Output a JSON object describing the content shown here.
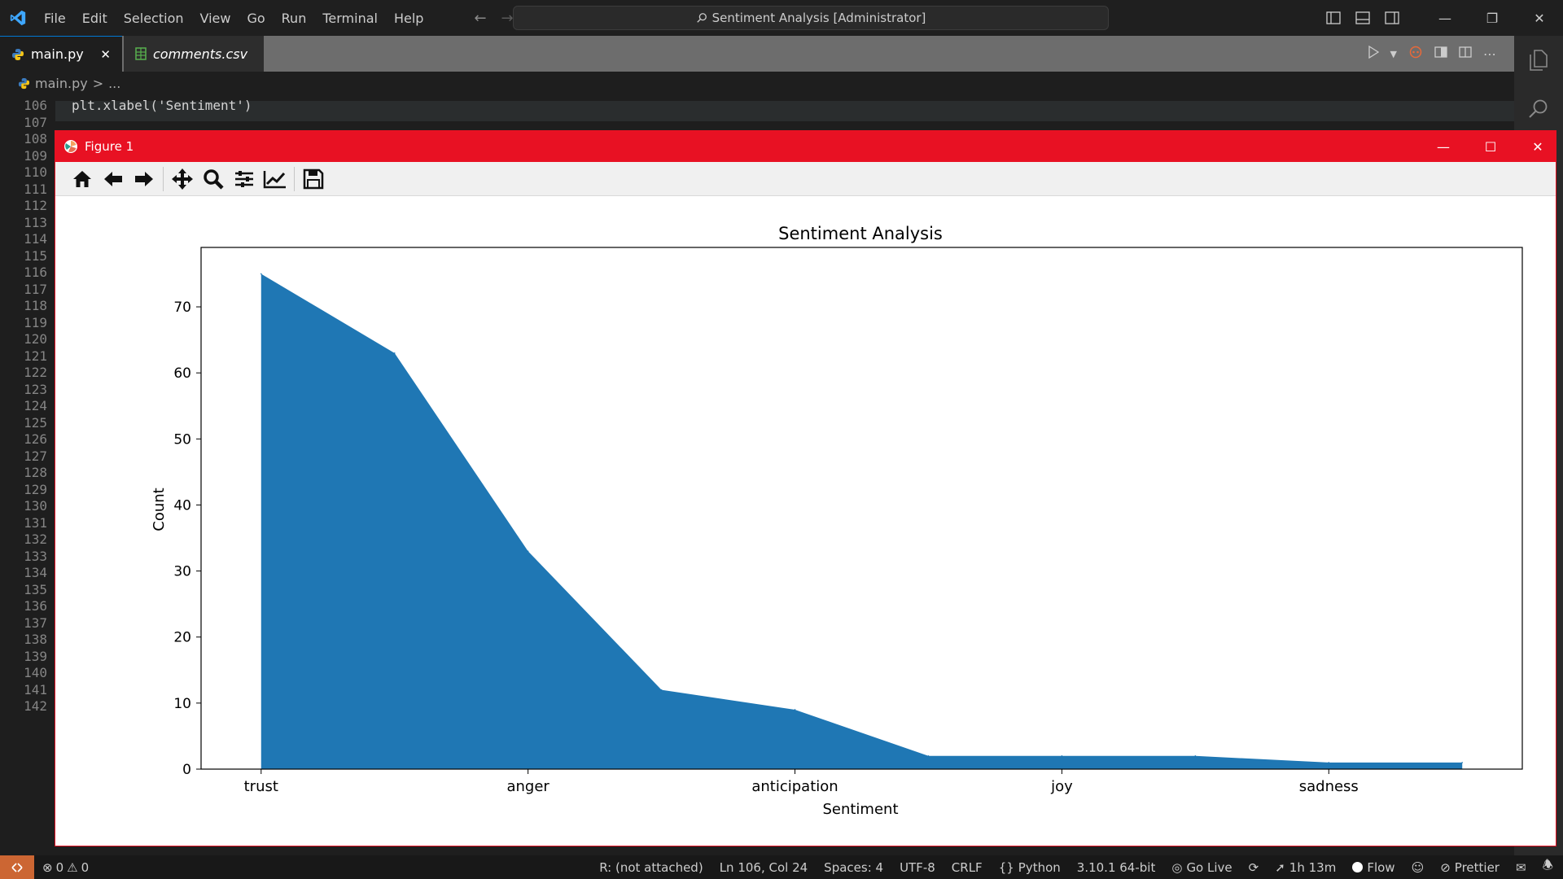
{
  "window": {
    "command_center": "Sentiment Analysis [Administrator]"
  },
  "menu": [
    "File",
    "Edit",
    "Selection",
    "View",
    "Go",
    "Run",
    "Terminal",
    "Help"
  ],
  "tabs": [
    {
      "label": "main.py",
      "icon": "python-icon",
      "active": true
    },
    {
      "label": "comments.csv",
      "icon": "csv-icon",
      "active": false
    }
  ],
  "breadcrumb": {
    "file": "main.py",
    "separator": ">",
    "rest": "..."
  },
  "editor": {
    "lines": [
      {
        "no": "106",
        "code": "plt.xlabel('Sentiment')"
      },
      {
        "no": "107",
        "code": ""
      },
      {
        "no": "108",
        "code": ""
      },
      {
        "no": "109",
        "code": ""
      },
      {
        "no": "110",
        "code": ""
      },
      {
        "no": "111",
        "code": ""
      },
      {
        "no": "112",
        "code": ""
      },
      {
        "no": "113",
        "code": ""
      },
      {
        "no": "114",
        "code": ""
      },
      {
        "no": "115",
        "code": ""
      },
      {
        "no": "116",
        "code": ""
      },
      {
        "no": "117",
        "code": ""
      },
      {
        "no": "118",
        "code": ""
      },
      {
        "no": "119",
        "code": ""
      },
      {
        "no": "120",
        "code": ""
      },
      {
        "no": "121",
        "code": ""
      },
      {
        "no": "122",
        "code": ""
      },
      {
        "no": "123",
        "code": ""
      },
      {
        "no": "124",
        "code": ""
      },
      {
        "no": "125",
        "code": ""
      },
      {
        "no": "126",
        "code": ""
      },
      {
        "no": "127",
        "code": ""
      },
      {
        "no": "128",
        "code": ""
      },
      {
        "no": "129",
        "code": ""
      },
      {
        "no": "130",
        "code": ""
      },
      {
        "no": "131",
        "code": ""
      },
      {
        "no": "132",
        "code": ""
      },
      {
        "no": "133",
        "code": ""
      },
      {
        "no": "134",
        "code": ""
      },
      {
        "no": "135",
        "code": ""
      },
      {
        "no": "136",
        "code": ""
      },
      {
        "no": "137",
        "code": ""
      },
      {
        "no": "138",
        "code": ""
      },
      {
        "no": "139",
        "code": ""
      },
      {
        "no": "140",
        "code": ""
      },
      {
        "no": "141",
        "code": ""
      },
      {
        "no": "142",
        "code": ""
      }
    ]
  },
  "figure": {
    "title": "Figure 1"
  },
  "chart_data": {
    "type": "area",
    "title": "Sentiment Analysis",
    "xlabel": "Sentiment",
    "ylabel": "Count",
    "x": [
      0,
      1,
      2,
      3,
      4,
      5,
      6,
      7,
      8,
      9
    ],
    "values": [
      75,
      63,
      33,
      12,
      9,
      2,
      2,
      2,
      1,
      1
    ],
    "xticks": [
      0,
      2,
      4,
      6,
      8
    ],
    "xtick_labels": [
      "trust",
      "anger",
      "anticipation",
      "joy",
      "sadness"
    ],
    "yticks": [
      0,
      10,
      20,
      30,
      40,
      50,
      60,
      70
    ],
    "xlim": [
      -0.45,
      9.45
    ],
    "ylim": [
      0,
      79
    ],
    "color": "#1f77b4",
    "grid": false
  },
  "statusbar": {
    "errors": "0",
    "warnings": "0",
    "r_status": "R: (not attached)",
    "position": "Ln 106, Col 24",
    "spaces": "Spaces: 4",
    "encoding": "UTF-8",
    "eol": "CRLF",
    "language": "Python",
    "interpreter": "3.10.1 64-bit",
    "go_live": "Go Live",
    "time": "1h 13m",
    "flow": "Flow",
    "prettier": "Prettier"
  },
  "colors": {
    "accent": "#0078d4",
    "figure_titlebar": "#e81123",
    "remote": "#cc6633"
  }
}
